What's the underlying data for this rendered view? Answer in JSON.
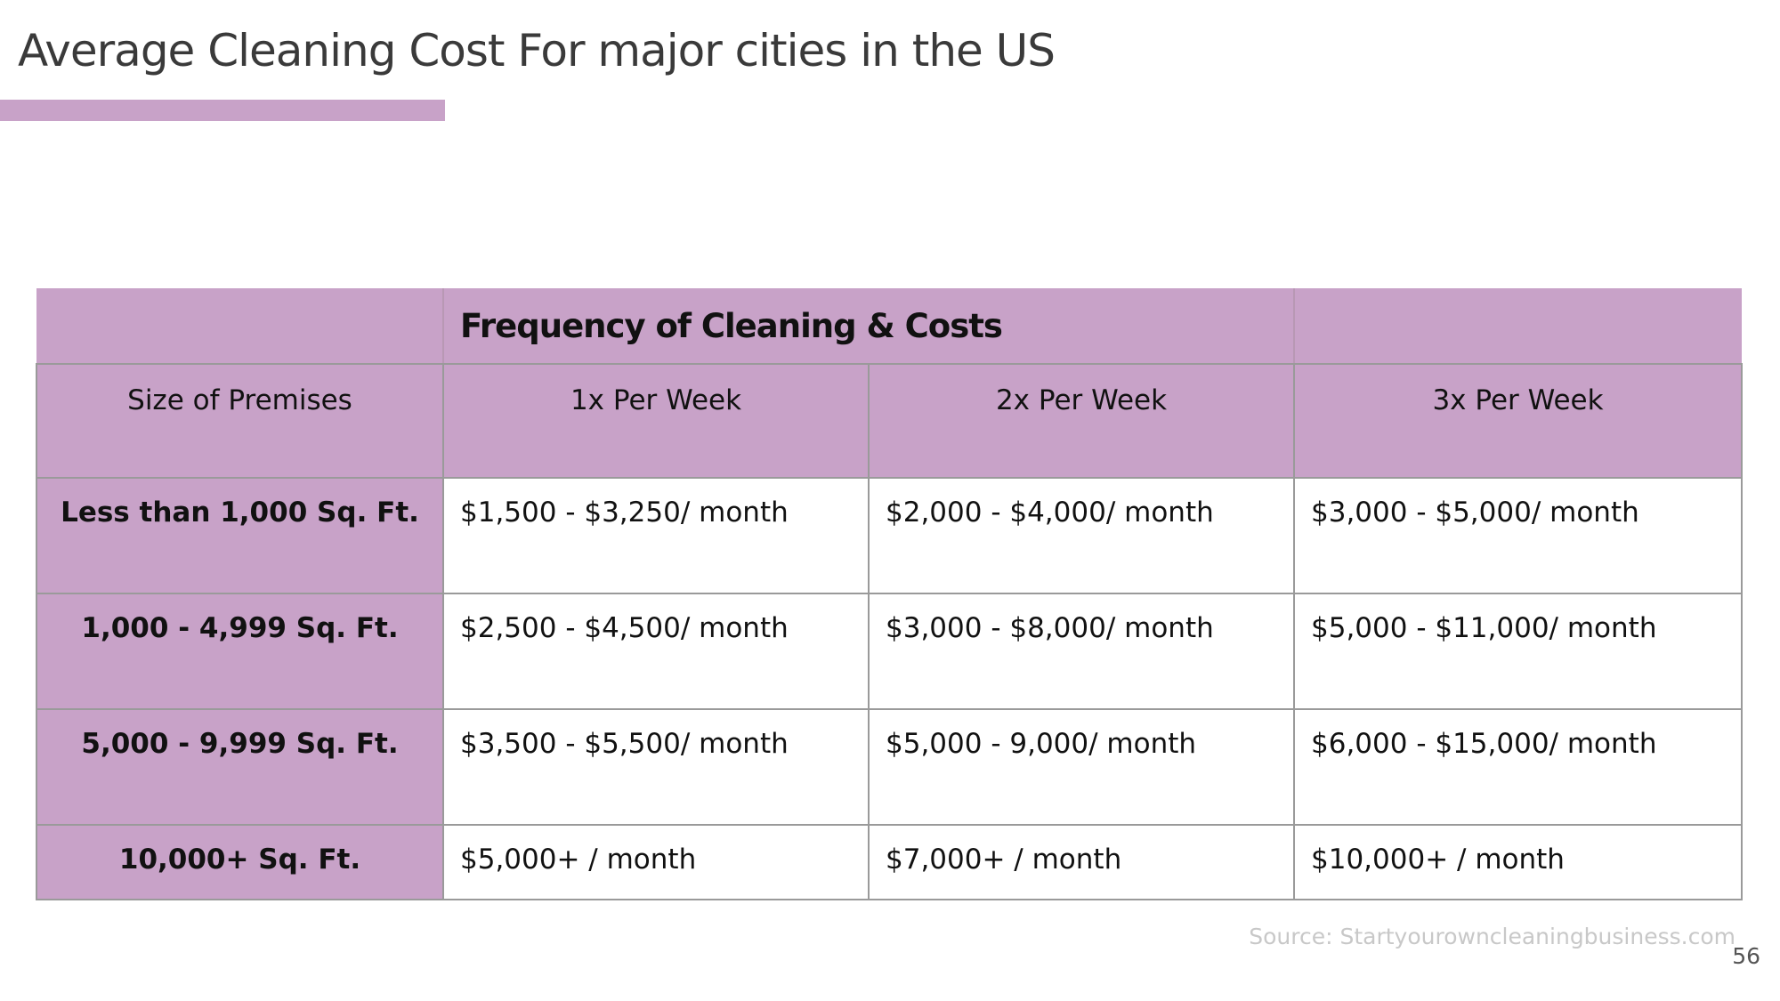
{
  "title": "Average Cleaning Cost For major cities in the US",
  "colors": {
    "accent": "#c8a2c8",
    "title_text": "#3a3a3a",
    "border": "#9a9a9a",
    "source_text": "#c8c8c8"
  },
  "table": {
    "group_header": "Frequency of Cleaning & Costs",
    "columns": [
      "Size of Premises",
      "1x Per Week",
      "2x Per Week",
      "3x Per Week"
    ],
    "rows": [
      {
        "size": "Less than 1,000 Sq. Ft.",
        "costs": [
          "$1,500 - $3,250/ month",
          "$2,000 - $4,000/ month",
          "$3,000 - $5,000/ month"
        ]
      },
      {
        "size": "1,000 - 4,999 Sq. Ft.",
        "costs": [
          "$2,500 - $4,500/ month",
          "$3,000 - $8,000/ month",
          "$5,000 - $11,000/ month"
        ]
      },
      {
        "size": "5,000 - 9,999 Sq. Ft.",
        "costs": [
          "$3,500 - $5,500/ month",
          "$5,000 - 9,000/ month",
          "$6,000 - $15,000/ month"
        ]
      },
      {
        "size": "10,000+ Sq. Ft.",
        "costs": [
          "$5,000+ / month",
          "$7,000+ / month",
          "$10,000+ / month"
        ]
      }
    ]
  },
  "source": "Source: Startyourowncleaningbusiness.com",
  "page_number": "56"
}
